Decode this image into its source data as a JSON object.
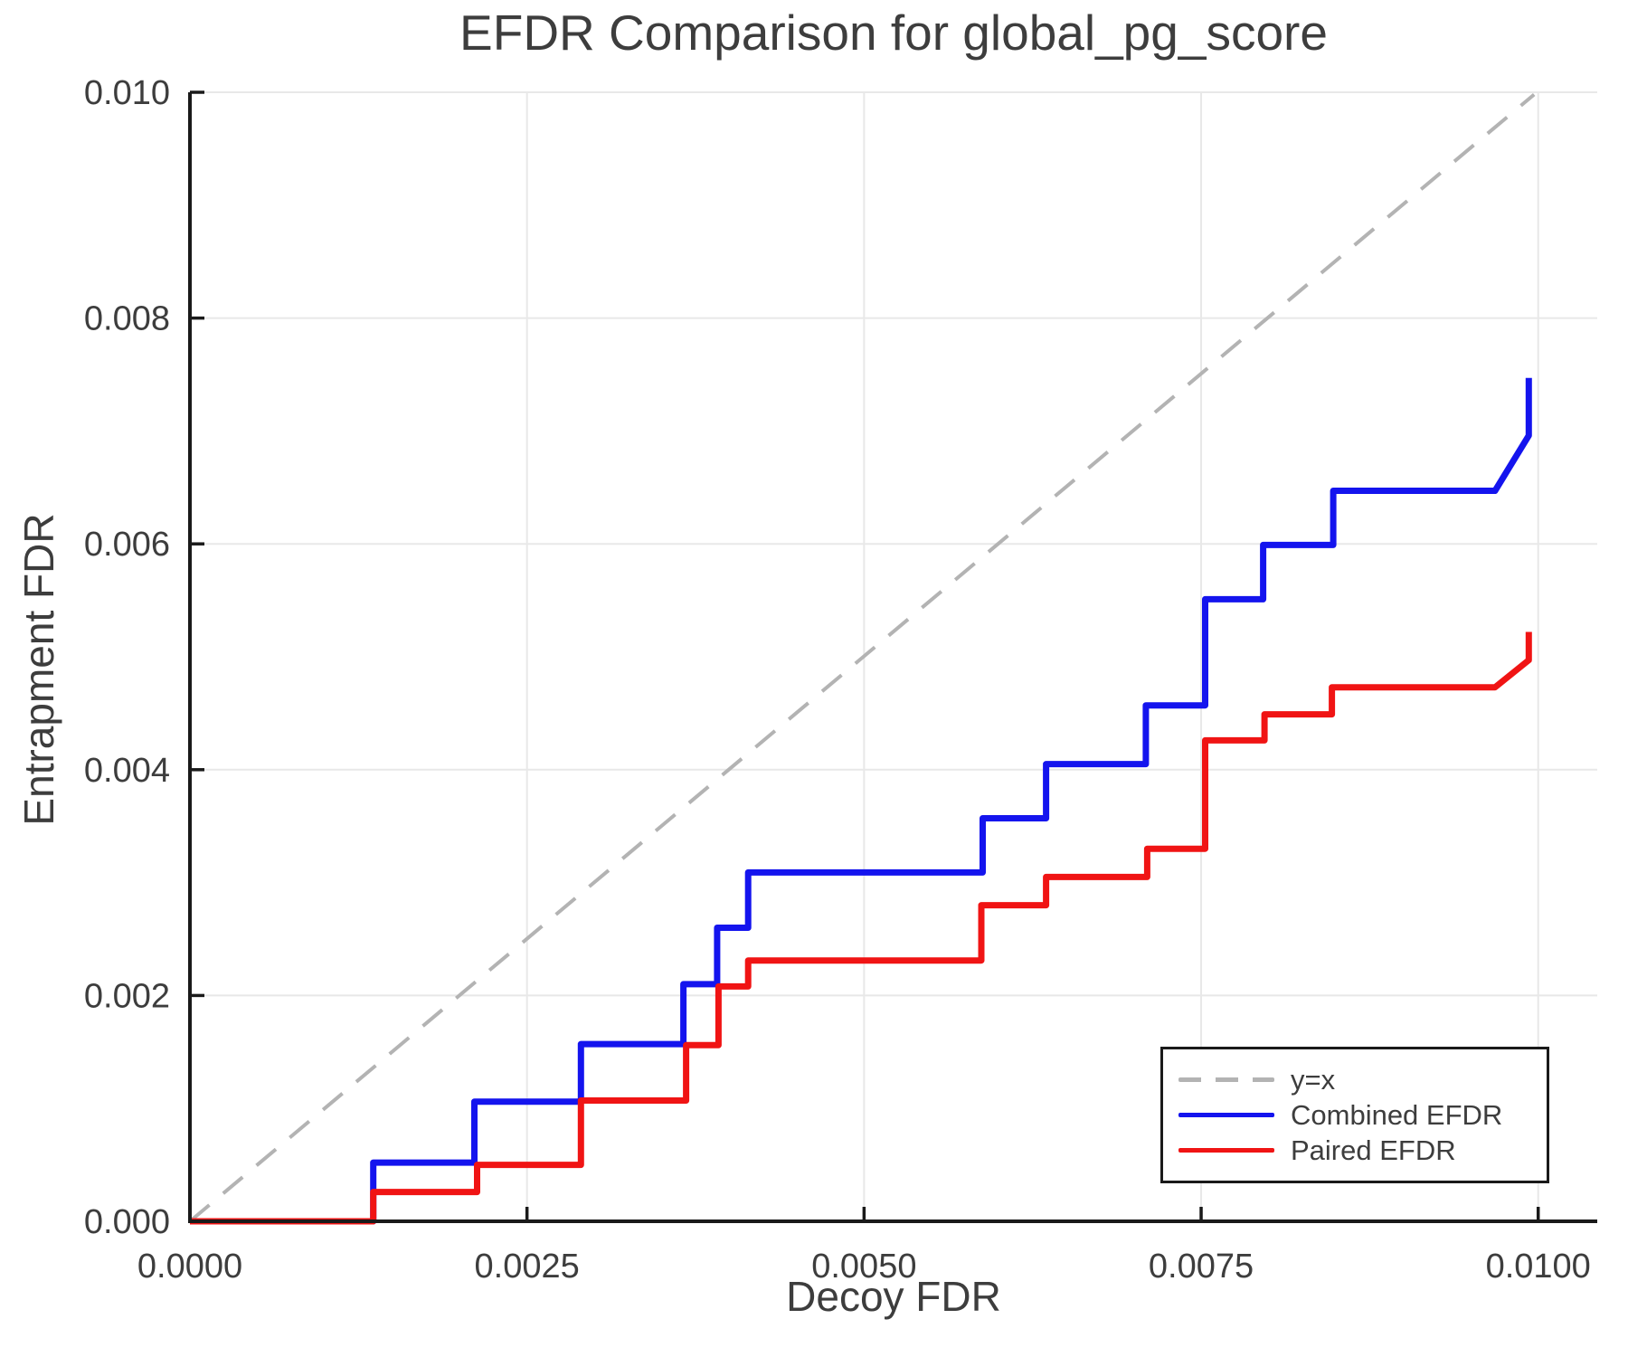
{
  "chart_data": {
    "type": "line",
    "title": "EFDR Comparison for global_pg_score",
    "xlabel": "Decoy FDR",
    "ylabel": "Entrapment FDR",
    "xlim": [
      0,
      0.010438
    ],
    "ylim": [
      0,
      0.01
    ],
    "grid": true,
    "legend_position": "lower right",
    "xticks": {
      "values": [
        0.0,
        0.0025,
        0.005,
        0.0075,
        0.01
      ],
      "labels": [
        "0.0000",
        "0.0025",
        "0.0050",
        "0.0075",
        "0.0100"
      ]
    },
    "yticks": {
      "values": [
        0.0,
        0.002,
        0.004,
        0.006,
        0.008,
        0.01
      ],
      "labels": [
        "0.000",
        "0.002",
        "0.004",
        "0.006",
        "0.008",
        "0.010"
      ]
    },
    "style": {
      "grid_color": "#e8e8e8",
      "spine_color": "#1a1a1a",
      "text_color": "#3d3d3d",
      "background": "#ffffff"
    },
    "series": [
      {
        "name": "y=x",
        "color": "#b3b3b3",
        "dashed": true,
        "stroke_width": 4,
        "points": [
          [
            0,
            0
          ],
          [
            0.00997,
            0.00998
          ]
        ]
      },
      {
        "name": "Combined EFDR",
        "color": "#1414ee",
        "dashed": false,
        "stroke_width": 7,
        "points": [
          [
            0,
            0
          ],
          [
            0.00136,
            0
          ],
          [
            0.00136,
            0.00052
          ],
          [
            0.00211,
            0.00052
          ],
          [
            0.00211,
            0.00106
          ],
          [
            0.0029,
            0.00106
          ],
          [
            0.0029,
            0.00157
          ],
          [
            0.00366,
            0.00157
          ],
          [
            0.00366,
            0.0021
          ],
          [
            0.00391,
            0.0021
          ],
          [
            0.00391,
            0.0026
          ],
          [
            0.00414,
            0.0026
          ],
          [
            0.00414,
            0.00309
          ],
          [
            0.00588,
            0.00309
          ],
          [
            0.00588,
            0.00357
          ],
          [
            0.00635,
            0.00357
          ],
          [
            0.00635,
            0.00405
          ],
          [
            0.00709,
            0.00405
          ],
          [
            0.00709,
            0.00457
          ],
          [
            0.00753,
            0.00457
          ],
          [
            0.00753,
            0.00551
          ],
          [
            0.00796,
            0.00551
          ],
          [
            0.00796,
            0.00599
          ],
          [
            0.00848,
            0.00599
          ],
          [
            0.00848,
            0.00647
          ],
          [
            0.00968,
            0.00647
          ],
          [
            0.00993,
            0.00696
          ],
          [
            0.00993,
            0.00747
          ]
        ]
      },
      {
        "name": "Paired EFDR",
        "color": "#f01414",
        "dashed": false,
        "stroke_width": 7,
        "points": [
          [
            0,
            0
          ],
          [
            0.00136,
            0
          ],
          [
            0.00136,
            0.00026
          ],
          [
            0.00213,
            0.00026
          ],
          [
            0.00213,
            0.0005
          ],
          [
            0.0029,
            0.0005
          ],
          [
            0.0029,
            0.00107
          ],
          [
            0.00368,
            0.00107
          ],
          [
            0.00368,
            0.00156
          ],
          [
            0.00392,
            0.00156
          ],
          [
            0.00392,
            0.00208
          ],
          [
            0.00414,
            0.00208
          ],
          [
            0.00414,
            0.00231
          ],
          [
            0.00587,
            0.00231
          ],
          [
            0.00587,
            0.0028
          ],
          [
            0.00635,
            0.0028
          ],
          [
            0.00635,
            0.00305
          ],
          [
            0.0071,
            0.00305
          ],
          [
            0.0071,
            0.0033
          ],
          [
            0.00753,
            0.0033
          ],
          [
            0.00753,
            0.00426
          ],
          [
            0.00797,
            0.00426
          ],
          [
            0.00797,
            0.00449
          ],
          [
            0.00847,
            0.00449
          ],
          [
            0.00847,
            0.00473
          ],
          [
            0.00968,
            0.00473
          ],
          [
            0.00993,
            0.00497
          ],
          [
            0.00993,
            0.00522
          ]
        ]
      }
    ]
  }
}
